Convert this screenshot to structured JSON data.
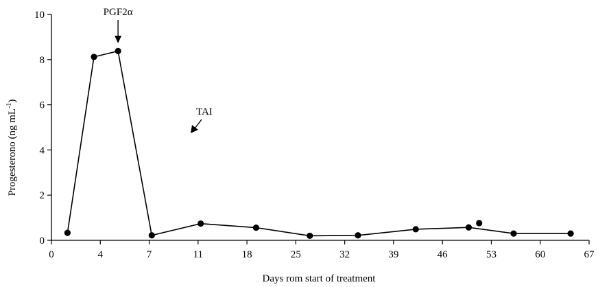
{
  "chart_data": {
    "type": "line",
    "xlabel": "Days rom start of treatment",
    "ylabel": "Progesterono (ng mL",
    "ylabel_superscript": "-1",
    "ylabel_close": ")",
    "x_ticks": [
      "0",
      "4",
      "7",
      "11",
      "18",
      "25",
      "32",
      "39",
      "46",
      "53",
      "60",
      "67"
    ],
    "y_ticks": [
      "0",
      "2",
      "4",
      "6",
      "8",
      "10"
    ],
    "ylim": [
      0,
      10
    ],
    "grid": false,
    "series": [
      {
        "points": [
          {
            "x": 2,
            "y": 0.33
          },
          {
            "x": 5.3,
            "y": 8.12
          },
          {
            "x": 8.3,
            "y": 8.38
          },
          {
            "x": 12.5,
            "y": 0.22
          },
          {
            "x": 18.6,
            "y": 0.74
          },
          {
            "x": 25.5,
            "y": 0.56
          },
          {
            "x": 32.2,
            "y": 0.2
          },
          {
            "x": 38.2,
            "y": 0.22
          },
          {
            "x": 45.4,
            "y": 0.49
          },
          {
            "x": 52,
            "y": 0.57
          },
          {
            "x": 57.6,
            "y": 0.3
          },
          {
            "x": 64.7,
            "y": 0.3
          }
        ],
        "extra_points": [
          {
            "x": 53.3,
            "y": 0.76
          }
        ]
      }
    ],
    "annotations": [
      {
        "text": "PGF2α",
        "x": 8.3,
        "arrow": "down"
      },
      {
        "text": "TAI",
        "x": 11,
        "arrow": "down-left"
      }
    ]
  }
}
